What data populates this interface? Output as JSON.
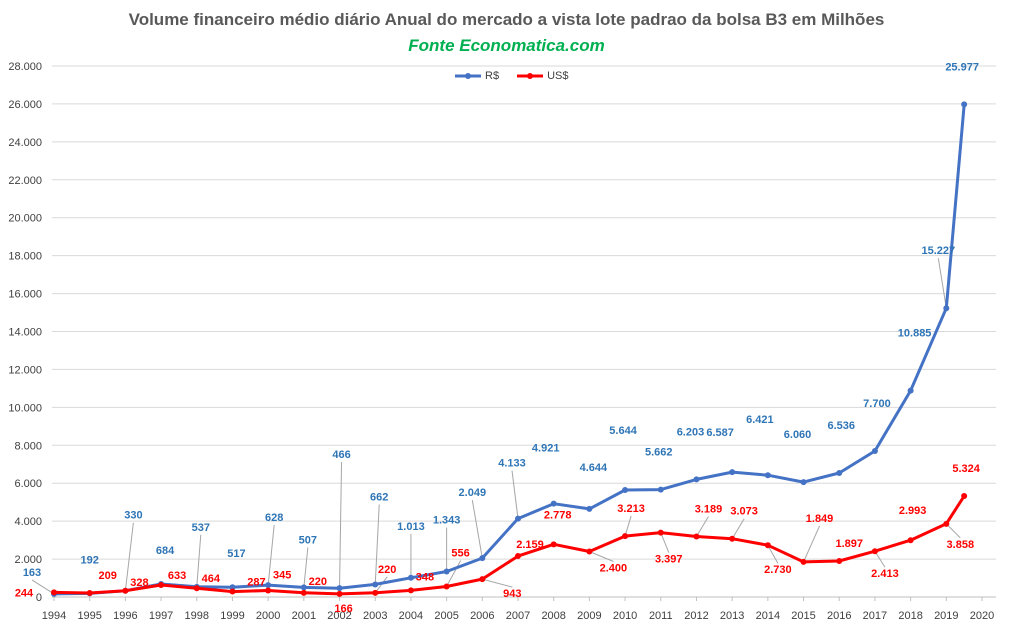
{
  "chart_data": {
    "type": "line",
    "title": "Volume financeiro médio diário Anual do mercado a vista lote padrao da bolsa B3 em Milhões",
    "subtitle": "Fonte Economatica.com",
    "xlabel": "",
    "ylabel": "",
    "ylim": [
      0,
      28000
    ],
    "xlim": [
      1994,
      2020
    ],
    "y_ticks": [
      "0",
      "2.000",
      "4.000",
      "6.000",
      "8.000",
      "10.000",
      "12.000",
      "14.000",
      "16.000",
      "18.000",
      "20.000",
      "22.000",
      "24.000",
      "26.000",
      "28.000"
    ],
    "x_ticks": [
      "1994",
      "1995",
      "1996",
      "1997",
      "1998",
      "1999",
      "2000",
      "2001",
      "2002",
      "2003",
      "2004",
      "2005",
      "2006",
      "2007",
      "2008",
      "2009",
      "2010",
      "2011",
      "2012",
      "2013",
      "2014",
      "2015",
      "2016",
      "2017",
      "2018",
      "2019",
      "2020"
    ],
    "grid": "horizontal",
    "legend_position": "top-center",
    "x": [
      1994,
      1995,
      1996,
      1997,
      1998,
      1999,
      2000,
      2001,
      2002,
      2003,
      2004,
      2005,
      2006,
      2007,
      2008,
      2009,
      2010,
      2011,
      2012,
      2013,
      2014,
      2015,
      2016,
      2017,
      2018,
      2019,
      2019.5
    ],
    "series": [
      {
        "name": "R$",
        "color": "#4472c4",
        "label_color": "#2e75b6",
        "values": [
          163,
          192,
          330,
          684,
          537,
          517,
          628,
          507,
          466,
          662,
          1013,
          1343,
          2049,
          4133,
          4921,
          4644,
          5644,
          5662,
          6203,
          6587,
          6421,
          6060,
          6536,
          7700,
          10885,
          15227,
          25977
        ],
        "labels": [
          "163",
          "192",
          "330",
          "684",
          "537",
          "517",
          "628",
          "507",
          "466",
          "662",
          "1.013",
          "1.343",
          "2.049",
          "4.133",
          "4.921",
          "4.644",
          "5.644",
          "5.662",
          "6.203",
          "6.587",
          "6.421",
          "6.060",
          "6.536",
          "7.700",
          "10.885",
          "15.227",
          "25.977"
        ]
      },
      {
        "name": "US$",
        "color": "#ff0000",
        "label_color": "#ff0000",
        "values": [
          244,
          209,
          328,
          633,
          464,
          287,
          345,
          220,
          166,
          220,
          348,
          556,
          943,
          2159,
          2778,
          2400,
          3213,
          3397,
          3189,
          3073,
          2730,
          1849,
          1897,
          2413,
          2993,
          3858,
          5324
        ],
        "labels": [
          "244",
          "209",
          "328",
          "633",
          "464",
          "287",
          "345",
          "220",
          "166",
          "220",
          "348",
          "556",
          "943",
          "2.159",
          "2.778",
          "2.400",
          "3.213",
          "3.397",
          "3.189",
          "3.073",
          "2.730",
          "1.849",
          "1.897",
          "2.413",
          "2.993",
          "3.858",
          "5.324"
        ]
      }
    ]
  }
}
